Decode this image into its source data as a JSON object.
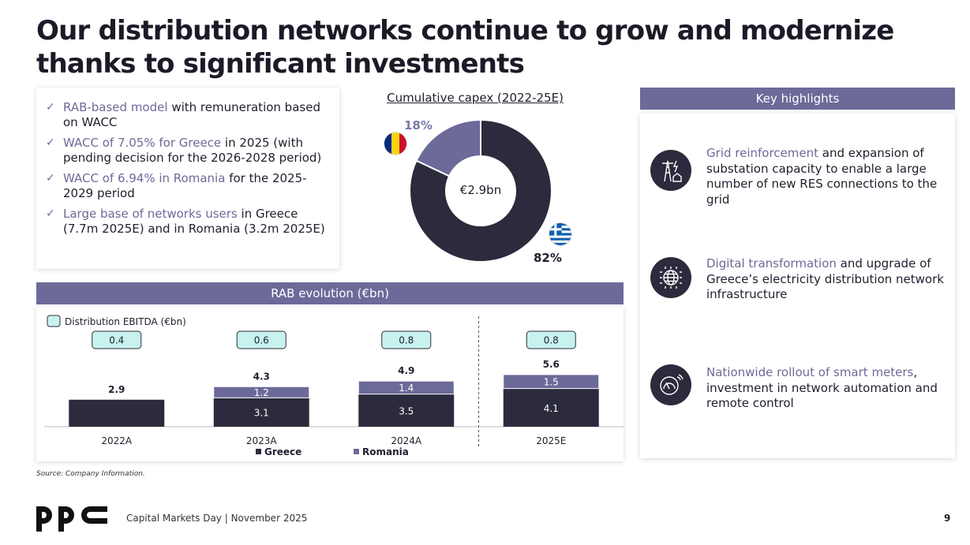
{
  "title": "Our distribution networks continue to grow and modernize thanks to significant investments",
  "bullets": [
    {
      "hl": "RAB-based model",
      "rest": " with remuneration based on WACC"
    },
    {
      "hl": "WACC of 7.05% for Greece",
      "rest": " in 2025 (with pending decision for the 2026-2028 period)"
    },
    {
      "hl": "WACC of 6.94% in Romania",
      "rest": " for the 2025-2029 period"
    },
    {
      "hl": "Large base of networks users",
      "rest": " in Greece (7.7m 2025E) and in Romania (3.2m 2025E)"
    }
  ],
  "colors": {
    "accent": "#6c6a99",
    "dark": "#2b2b3d",
    "ebitda_fill": "#c7f2ee"
  },
  "chart_data": [
    {
      "type": "pie",
      "title": "Cumulative capex (2022-25E)",
      "center_label": "€2.9bn",
      "slices": [
        {
          "name": "Greece",
          "value": 82,
          "label": "82%",
          "color": "#2b2b3d",
          "flag": "greece-flag"
        },
        {
          "name": "Romania",
          "value": 18,
          "label": "18%",
          "color": "#6c6a99",
          "flag": "romania-flag"
        }
      ]
    },
    {
      "type": "bar",
      "title": "RAB evolution (€bn)",
      "categories": [
        "2022A",
        "2023A",
        "2024A",
        "2025E"
      ],
      "series": [
        {
          "name": "Greece",
          "values": [
            2.9,
            3.1,
            3.5,
            4.1
          ],
          "labels": [
            "",
            "3.1",
            "3.5",
            "4.1"
          ],
          "color": "#2b2b3d"
        },
        {
          "name": "Romania",
          "values": [
            0,
            1.2,
            1.4,
            1.5
          ],
          "labels": [
            "",
            "1.2",
            "1.4",
            "1.5"
          ],
          "color": "#6c6a99"
        }
      ],
      "totals": [
        "2.9",
        "4.3",
        "4.9",
        "5.6"
      ],
      "ebitda_legend": "Distribution EBITDA (€bn)",
      "ebitda": [
        "0.4",
        "0.6",
        "0.8",
        "0.8"
      ],
      "legend": [
        "Greece",
        "Romania"
      ],
      "divider_before": "2025E"
    }
  ],
  "key_highlights": {
    "header": "Key highlights",
    "items": [
      {
        "hl": "Grid reinforcement",
        "rest": " and expansion of substation capacity to enable a large number of new RES connections to the grid",
        "icon": "power-grid-icon"
      },
      {
        "hl": "Digital transformation",
        "rest": " and upgrade of Greece’s electricity distribution network infrastructure",
        "icon": "digital-globe-icon"
      },
      {
        "hl": "Nationwide rollout of smart meters",
        "rest": ", investment in network automation and remote control",
        "icon": "smart-meter-icon"
      }
    ]
  },
  "source": "Source: Company Information.",
  "footer": {
    "logo": "ppc",
    "text": "Capital Markets Day | November 2025",
    "page": "9"
  }
}
